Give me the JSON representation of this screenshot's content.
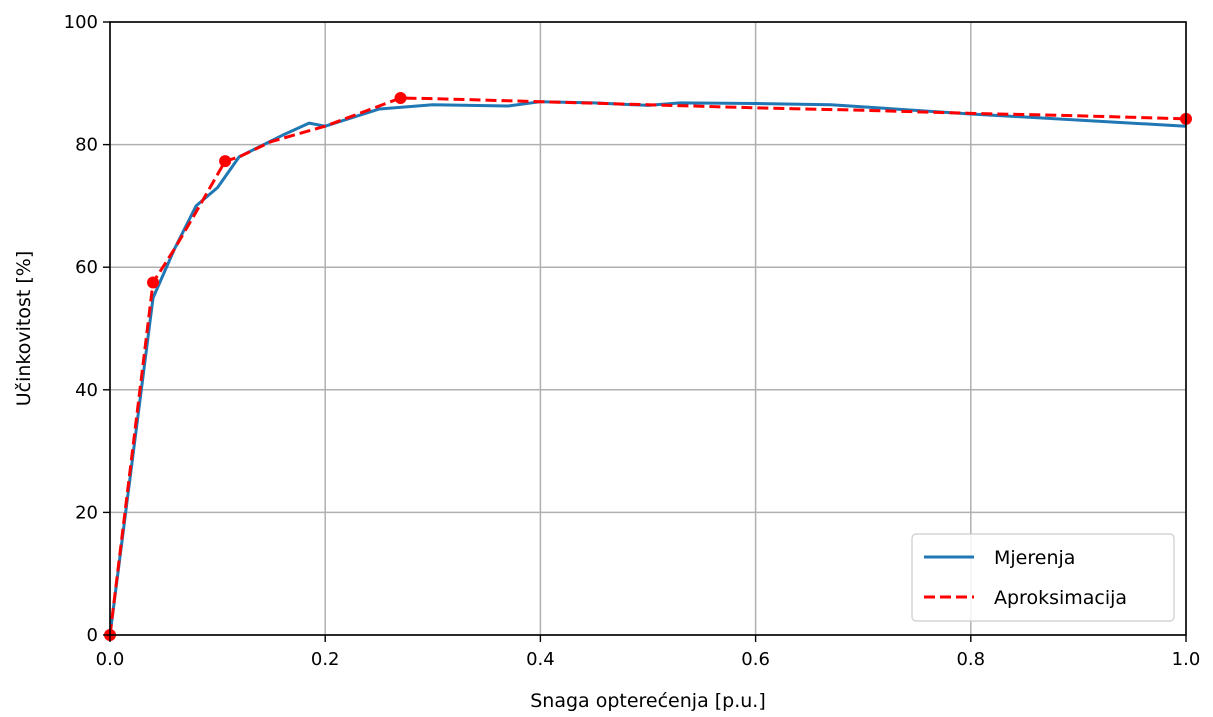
{
  "chart_data": {
    "type": "line",
    "title": "",
    "xlabel": "Snaga opterećenja [p.u.]",
    "ylabel": "Učinkovitost [%]",
    "xlim": [
      0.0,
      1.0
    ],
    "ylim": [
      0,
      100
    ],
    "x_ticks": [
      0.0,
      0.2,
      0.4,
      0.6,
      0.8,
      1.0
    ],
    "x_tick_labels": [
      "0.0",
      "0.2",
      "0.4",
      "0.6",
      "0.8",
      "1.0"
    ],
    "y_ticks": [
      0,
      20,
      40,
      60,
      80,
      100
    ],
    "y_tick_labels": [
      "0",
      "20",
      "40",
      "60",
      "80",
      "100"
    ],
    "grid": true,
    "legend_position": "bottom-right",
    "series": [
      {
        "name": "Mjerenja",
        "color": "#1f77b4",
        "style": "solid",
        "x": [
          0.0,
          0.04,
          0.06,
          0.08,
          0.1,
          0.12,
          0.16,
          0.185,
          0.2,
          0.25,
          0.3,
          0.37,
          0.4,
          0.45,
          0.5,
          0.53,
          0.6,
          0.67,
          0.8,
          1.0
        ],
        "y": [
          0.0,
          55.0,
          63.0,
          70.0,
          73.0,
          78.0,
          81.5,
          83.5,
          83.0,
          85.8,
          86.5,
          86.3,
          87.0,
          86.8,
          86.4,
          86.8,
          86.7,
          86.5,
          85.0,
          83.0
        ]
      },
      {
        "name": "Aproksimacija",
        "color": "#ff0000",
        "style": "dashed",
        "x": [
          0.0,
          0.04,
          0.06,
          0.08,
          0.107,
          0.12,
          0.15,
          0.2,
          0.27,
          0.3,
          0.4,
          0.5,
          0.6,
          0.7,
          0.8,
          0.9,
          1.0
        ],
        "y": [
          0.0,
          57.5,
          63.0,
          69.0,
          77.3,
          78.0,
          80.5,
          83.0,
          87.6,
          87.5,
          87.0,
          86.5,
          86.0,
          85.6,
          85.1,
          84.7,
          84.2
        ]
      },
      {
        "name": "",
        "color": "#ff0000",
        "style": "markers",
        "x": [
          0.0,
          0.04,
          0.107,
          0.27,
          1.0
        ],
        "y": [
          0.0,
          57.5,
          77.3,
          87.6,
          84.2
        ]
      }
    ]
  }
}
